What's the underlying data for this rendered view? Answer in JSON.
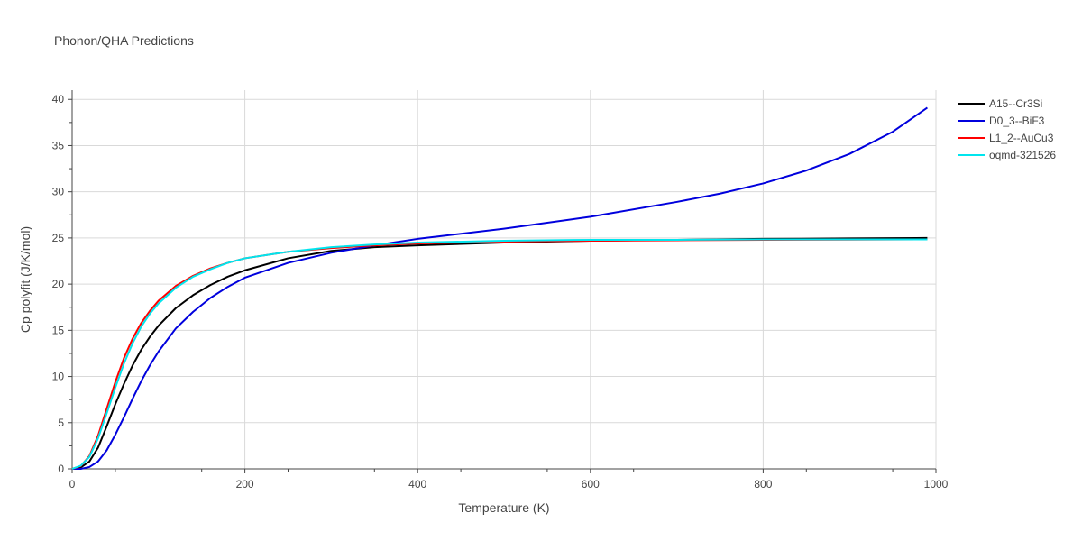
{
  "chart_data": {
    "type": "line",
    "title": "Phonon/QHA Predictions",
    "xlabel": "Temperature (K)",
    "ylabel": "Cp polyfit (J/K/mol)",
    "xlim": [
      0,
      1000
    ],
    "ylim": [
      0,
      41
    ],
    "xticks": [
      0,
      200,
      400,
      600,
      800,
      1000
    ],
    "yticks": [
      0,
      5,
      10,
      15,
      20,
      25,
      30,
      35,
      40
    ],
    "grid": true,
    "legend_position": "top-right",
    "series": [
      {
        "name": "A15--Cr3Si",
        "color": "#000000",
        "x": [
          0,
          10,
          20,
          30,
          40,
          50,
          60,
          70,
          80,
          90,
          100,
          120,
          140,
          160,
          180,
          200,
          250,
          300,
          350,
          400,
          500,
          600,
          700,
          800,
          900,
          990
        ],
        "y": [
          0,
          0.15,
          0.8,
          2.3,
          4.6,
          7.0,
          9.2,
          11.2,
          12.9,
          14.3,
          15.5,
          17.4,
          18.8,
          19.9,
          20.8,
          21.5,
          22.8,
          23.6,
          24.0,
          24.2,
          24.5,
          24.7,
          24.8,
          24.9,
          24.95,
          25.0
        ]
      },
      {
        "name": "D0_3--BiF3",
        "color": "#0000dd",
        "x": [
          0,
          10,
          20,
          30,
          40,
          50,
          60,
          70,
          80,
          90,
          100,
          120,
          140,
          160,
          180,
          200,
          250,
          300,
          350,
          400,
          500,
          600,
          700,
          750,
          800,
          850,
          900,
          950,
          990
        ],
        "y": [
          0,
          0.0,
          0.2,
          0.8,
          2.0,
          3.7,
          5.6,
          7.6,
          9.5,
          11.2,
          12.7,
          15.2,
          17.0,
          18.5,
          19.7,
          20.7,
          22.3,
          23.4,
          24.2,
          24.9,
          26.0,
          27.3,
          28.9,
          29.8,
          30.9,
          32.3,
          34.1,
          36.5,
          39.1
        ]
      },
      {
        "name": "L1_2--AuCu3",
        "color": "#ff0000",
        "x": [
          0,
          10,
          20,
          30,
          40,
          50,
          60,
          70,
          80,
          90,
          100,
          120,
          140,
          160,
          180,
          200,
          250,
          300,
          350,
          400,
          500,
          600,
          700,
          800,
          900,
          990
        ],
        "y": [
          0,
          0.3,
          1.4,
          3.6,
          6.5,
          9.4,
          12.0,
          14.1,
          15.8,
          17.1,
          18.2,
          19.8,
          20.9,
          21.7,
          22.3,
          22.8,
          23.5,
          23.9,
          24.2,
          24.4,
          24.6,
          24.7,
          24.75,
          24.8,
          24.82,
          24.85
        ]
      },
      {
        "name": "oqmd-321526",
        "color": "#00e5ee",
        "x": [
          0,
          10,
          20,
          30,
          40,
          50,
          60,
          70,
          80,
          90,
          100,
          120,
          140,
          160,
          180,
          200,
          250,
          300,
          350,
          400,
          500,
          600,
          700,
          800,
          900,
          990
        ],
        "y": [
          0,
          0.35,
          1.3,
          3.3,
          6.0,
          8.8,
          11.4,
          13.6,
          15.4,
          16.8,
          17.9,
          19.6,
          20.8,
          21.6,
          22.3,
          22.8,
          23.5,
          24.0,
          24.3,
          24.5,
          24.7,
          24.8,
          24.8,
          24.85,
          24.85,
          24.85
        ]
      }
    ]
  }
}
